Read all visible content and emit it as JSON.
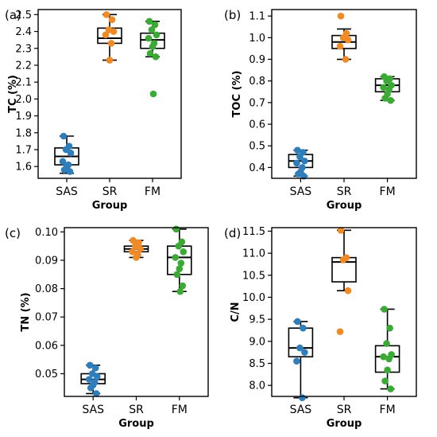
{
  "series_colors": {
    "SAS": "#2f7ebc",
    "SR": "#f08a24",
    "FM": "#3aaa35"
  },
  "chart_data": [
    {
      "type": "box",
      "panel_label": "(a)",
      "title": "",
      "xlabel": "Group",
      "ylabel": "TC (%)",
      "categories": [
        "SAS",
        "SR",
        "FM"
      ],
      "ylim": [
        1.53,
        2.53
      ],
      "yticks": [
        1.6,
        1.7,
        1.8,
        1.9,
        2.0,
        2.1,
        2.2,
        2.3,
        2.4,
        2.5
      ],
      "ytick_labels": [
        "1.6",
        "1.7",
        "1.8",
        "1.9",
        "2.0",
        "2.1",
        "2.2",
        "2.3",
        "2.4",
        "2.5"
      ],
      "boxes": [
        {
          "category": "SAS",
          "whisker_low": 1.56,
          "q1": 1.61,
          "median": 1.66,
          "q3": 1.71,
          "whisker_high": 1.78,
          "points": [
            1.78,
            1.72,
            1.7,
            1.68,
            1.63,
            1.61,
            1.6,
            1.58,
            1.57
          ]
        },
        {
          "category": "SR",
          "whisker_low": 2.23,
          "q1": 2.33,
          "median": 2.36,
          "q3": 2.42,
          "whisker_high": 2.5,
          "points": [
            2.5,
            2.47,
            2.41,
            2.4,
            2.38,
            2.33,
            2.23
          ]
        },
        {
          "category": "FM",
          "whisker_low": 2.25,
          "q1": 2.3,
          "median": 2.35,
          "q3": 2.39,
          "whisker_high": 2.46,
          "points": [
            2.46,
            2.44,
            2.41,
            2.38,
            2.36,
            2.33,
            2.31,
            2.27,
            2.25,
            2.03
          ]
        }
      ]
    },
    {
      "type": "box",
      "panel_label": "(b)",
      "title": "",
      "xlabel": "Group",
      "ylabel": "TOC (%)",
      "categories": [
        "SAS",
        "SR",
        "FM"
      ],
      "ylim": [
        0.35,
        1.13
      ],
      "yticks": [
        0.4,
        0.5,
        0.6,
        0.7,
        0.8,
        0.9,
        1.0,
        1.1
      ],
      "ytick_labels": [
        "0.4",
        "0.5",
        "0.6",
        "0.7",
        "0.8",
        "0.9",
        "1.0",
        "1.1"
      ],
      "boxes": [
        {
          "category": "SAS",
          "whisker_low": 0.36,
          "q1": 0.4,
          "median": 0.43,
          "q3": 0.46,
          "whisker_high": 0.48,
          "points": [
            0.48,
            0.47,
            0.45,
            0.43,
            0.42,
            0.4,
            0.38,
            0.37,
            0.36
          ]
        },
        {
          "category": "SR",
          "whisker_low": 0.9,
          "q1": 0.95,
          "median": 0.98,
          "q3": 1.01,
          "whisker_high": 1.04,
          "points": [
            1.1,
            1.02,
            1.0,
            0.99,
            0.96,
            0.9
          ]
        },
        {
          "category": "FM",
          "whisker_low": 0.71,
          "q1": 0.75,
          "median": 0.78,
          "q3": 0.81,
          "whisker_high": 0.82,
          "points": [
            0.82,
            0.81,
            0.8,
            0.78,
            0.77,
            0.76,
            0.74,
            0.72,
            0.71
          ]
        }
      ]
    },
    {
      "type": "box",
      "panel_label": "(c)",
      "title": "",
      "xlabel": "Group",
      "ylabel": "TN (%)",
      "categories": [
        "SAS",
        "SR",
        "FM"
      ],
      "ylim": [
        0.042,
        0.1015
      ],
      "yticks": [
        0.05,
        0.06,
        0.07,
        0.08,
        0.09,
        0.1
      ],
      "ytick_labels": [
        "0.05",
        "0.06",
        "0.07",
        "0.08",
        "0.09",
        "0.10"
      ],
      "boxes": [
        {
          "category": "SAS",
          "whisker_low": 0.043,
          "q1": 0.0465,
          "median": 0.048,
          "q3": 0.05,
          "whisker_high": 0.053,
          "points": [
            0.053,
            0.052,
            0.05,
            0.049,
            0.048,
            0.047,
            0.046,
            0.045,
            0.043
          ]
        },
        {
          "category": "SR",
          "whisker_low": 0.091,
          "q1": 0.093,
          "median": 0.094,
          "q3": 0.095,
          "whisker_high": 0.097,
          "points": [
            0.097,
            0.0962,
            0.095,
            0.094,
            0.093,
            0.092,
            0.091
          ]
        },
        {
          "category": "FM",
          "whisker_low": 0.079,
          "q1": 0.085,
          "median": 0.091,
          "q3": 0.095,
          "whisker_high": 0.101,
          "points": [
            0.101,
            0.0965,
            0.095,
            0.093,
            0.091,
            0.089,
            0.087,
            0.085,
            0.081,
            0.079
          ]
        }
      ]
    },
    {
      "type": "box",
      "panel_label": "(d)",
      "title": "",
      "xlabel": "Group",
      "ylabel": "C/N",
      "categories": [
        "SAS",
        "SR",
        "FM"
      ],
      "ylim": [
        7.75,
        11.58
      ],
      "yticks": [
        8.0,
        8.5,
        9.0,
        9.5,
        10.0,
        10.5,
        11.0,
        11.5
      ],
      "ytick_labels": [
        "8.0",
        "8.5",
        "9.0",
        "9.5",
        "10.0",
        "10.5",
        "11.0",
        "11.5"
      ],
      "boxes": [
        {
          "category": "SAS",
          "whisker_low": 7.72,
          "q1": 8.65,
          "median": 8.85,
          "q3": 9.3,
          "whisker_high": 9.45,
          "points": [
            9.45,
            9.3,
            8.85,
            8.75,
            8.55,
            7.72
          ]
        },
        {
          "category": "SR",
          "whisker_low": 10.15,
          "q1": 10.35,
          "median": 10.8,
          "q3": 10.9,
          "whisker_high": 11.52,
          "points": [
            11.52,
            10.9,
            10.85,
            10.15,
            9.22
          ]
        },
        {
          "category": "FM",
          "whisker_low": 7.92,
          "q1": 8.3,
          "median": 8.65,
          "q3": 8.9,
          "whisker_high": 9.73,
          "points": [
            9.73,
            9.3,
            8.95,
            8.7,
            8.65,
            8.6,
            8.35,
            8.1,
            7.92
          ]
        }
      ]
    }
  ]
}
